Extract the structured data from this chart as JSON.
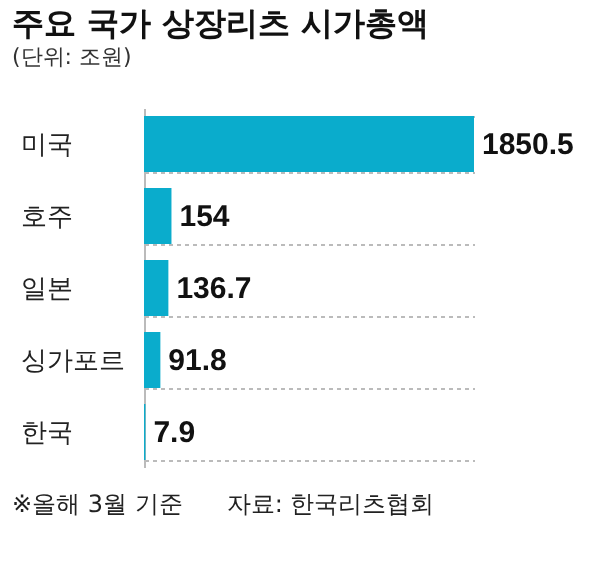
{
  "chart_data": {
    "type": "bar",
    "orientation": "horizontal",
    "title": "주요 국가 상장리츠 시가총액",
    "subtitle": "(단위: 조원)",
    "categories": [
      "미국",
      "호주",
      "일본",
      "싱가포르",
      "한국"
    ],
    "values": [
      1850.5,
      154,
      136.7,
      91.8,
      7.9
    ],
    "color": "#0aaccc",
    "data_labels": true,
    "grid": "y",
    "annotations": [
      "※올해 3월 기준",
      "자료: 한국리츠협회"
    ]
  }
}
